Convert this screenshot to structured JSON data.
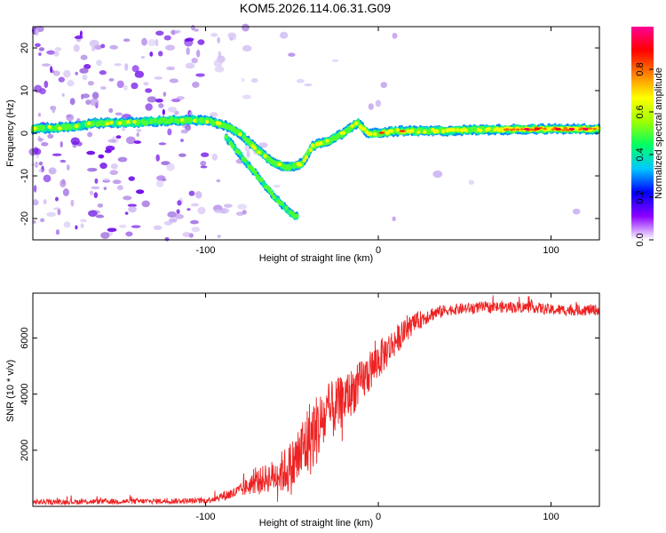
{
  "title": "KOM5.2026.114.06.31.G09",
  "chart_data": [
    {
      "type": "heatmap",
      "name": "spectrogram",
      "xlabel": "Height of straight line (km)",
      "ylabel": "Frequency (Hz)",
      "xlim": [
        -200,
        128
      ],
      "ylim": [
        -25,
        25
      ],
      "xticks": [
        -100,
        0,
        100
      ],
      "yticks": [
        -20,
        -10,
        0,
        10,
        20
      ],
      "ridge": {
        "x": [
          -200,
          -180,
          -160,
          -140,
          -120,
          -100,
          -90,
          -80,
          -70,
          -60,
          -52,
          -44,
          -38,
          -30,
          -20,
          -12,
          -6,
          0,
          10,
          30,
          60,
          90,
          128
        ],
        "y": [
          1,
          1.5,
          2.5,
          2.5,
          3,
          3,
          2,
          0,
          -4,
          -7,
          -8,
          -7,
          -3,
          -2,
          0,
          2.5,
          0,
          0,
          0.5,
          0.5,
          0.8,
          1,
          1
        ]
      },
      "branch": {
        "x": [
          -90,
          -80,
          -70,
          -60,
          -50,
          -45
        ],
        "y": [
          0,
          -5,
          -10,
          -15,
          -19,
          -20
        ]
      },
      "colorbar": {
        "label": "Normalized spectral amplitude",
        "ticks": [
          "0.0",
          "0.2",
          "0.4",
          "0.6",
          "0.8"
        ],
        "range": [
          0,
          1
        ],
        "colors": [
          "#ffffff",
          "#8a00ff",
          "#0000ff",
          "#00c8ff",
          "#00ff64",
          "#a0ff00",
          "#ffff00",
          "#ff8000",
          "#ff0000",
          "#ff0096"
        ]
      }
    },
    {
      "type": "line",
      "name": "snr",
      "xlabel": "Height of straight line (km)",
      "ylabel": "SNR (10 * v/v)",
      "xlim": [
        -200,
        128
      ],
      "ylim": [
        0,
        7600
      ],
      "xticks": [
        -100,
        0,
        100
      ],
      "yticks": [
        2000,
        4000,
        6000
      ],
      "color": "#ee2222",
      "envelope": {
        "x": [
          -200,
          -100,
          -82,
          -70,
          -60,
          -50,
          -40,
          -30,
          -20,
          -10,
          0,
          10,
          20,
          30,
          40,
          60,
          90,
          100,
          128
        ],
        "y": [
          150,
          200,
          500,
          900,
          1100,
          1400,
          2400,
          3200,
          3800,
          4400,
          5200,
          5900,
          6500,
          6850,
          7000,
          7100,
          7100,
          7000,
          7000
        ]
      },
      "noise": {
        "x": [
          -200,
          -100,
          -80,
          -60,
          -40,
          -20,
          0,
          20,
          40,
          100,
          128
        ],
        "y": [
          90,
          100,
          250,
          600,
          1400,
          900,
          700,
          350,
          200,
          200,
          200
        ]
      }
    }
  ]
}
